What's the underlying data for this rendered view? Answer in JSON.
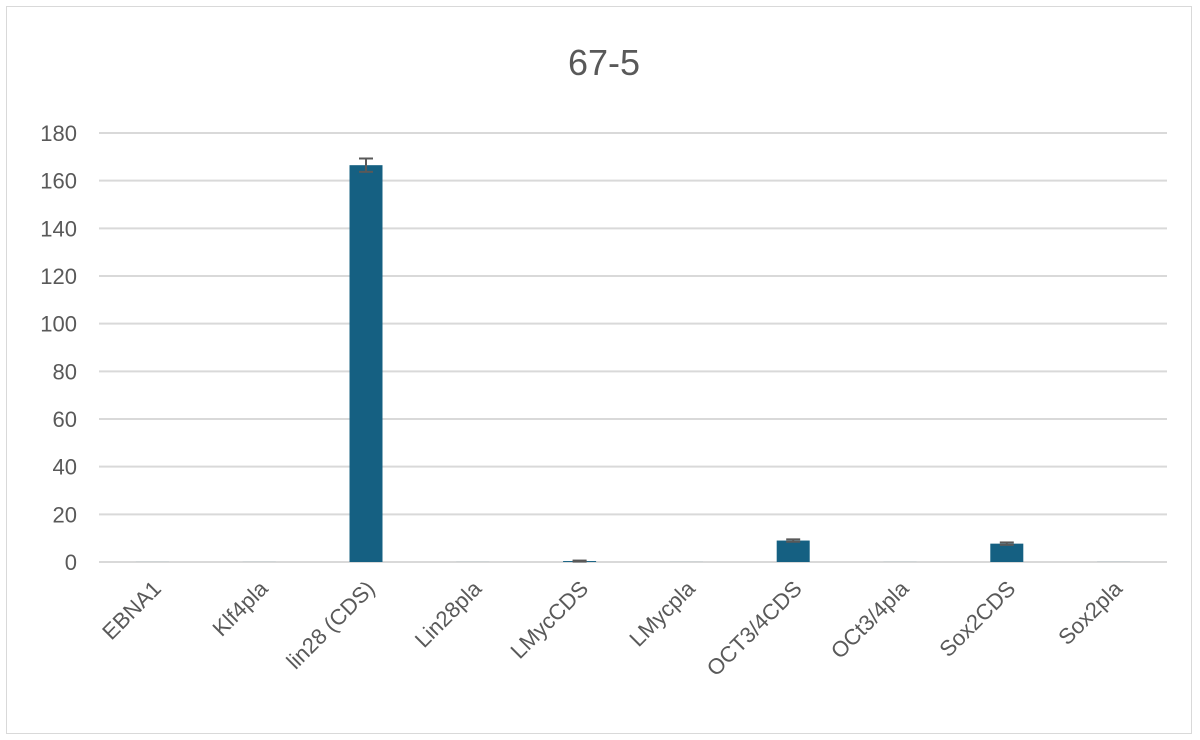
{
  "chart_data": {
    "type": "bar",
    "title": "67-5",
    "xlabel": "",
    "ylabel": "",
    "categories": [
      "EBNA1",
      "Klf4pla",
      "lin28 (CDS)",
      "Lin28pla",
      "LMycCDS",
      "LMycpla",
      "OCT3/4CDS",
      "OCt3/4pla",
      "Sox2CDS",
      "Sox2pla"
    ],
    "values": [
      0.02,
      0.02,
      166.5,
      0.02,
      0.4,
      0.02,
      9.0,
      0.02,
      7.7,
      0.03
    ],
    "errors": [
      0,
      0,
      2.8,
      0,
      0.2,
      0,
      0.5,
      0,
      0.5,
      0
    ],
    "ylim": [
      0,
      180
    ],
    "yticks": [
      0,
      20,
      40,
      60,
      80,
      100,
      120,
      140,
      160,
      180
    ],
    "grid": true,
    "legend": "none",
    "bar_color": "#156082",
    "error_color": "#595959",
    "grid_color": "#d9d9d9"
  }
}
